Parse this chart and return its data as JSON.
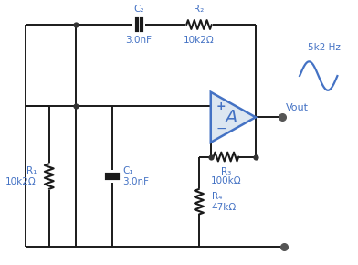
{
  "bg_color": "#ffffff",
  "line_color": "#1a1a1a",
  "component_color": "#4472c4",
  "opamp_fill": "#dce6f1",
  "opamp_edge": "#4472c4",
  "dot_color": "#333333",
  "wire_lw": 1.4,
  "comp_lw": 1.5,
  "labels": {
    "C2": "C₂",
    "C2_val": "3.0nF",
    "R2": "R₂",
    "R2_val": "10k2Ω",
    "R1": "R₁",
    "R1_val": "10k2Ω",
    "C1": "C₁",
    "C1_val": "3.0nF",
    "R3": "R₃",
    "R3_val": "100kΩ",
    "R4": "R₄",
    "R4_val": "47kΩ",
    "Vout": "Vout",
    "freq": "5k2 Hz",
    "A_label": "A"
  }
}
